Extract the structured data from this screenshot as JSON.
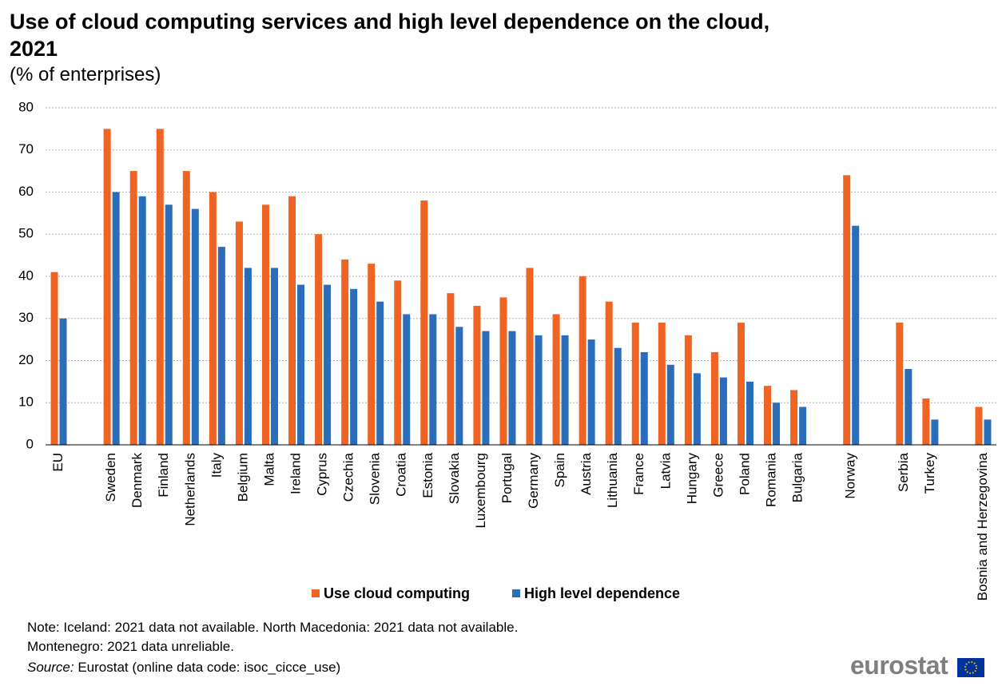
{
  "chart_data": {
    "type": "bar",
    "title": "Use of cloud computing services and high level dependence on the cloud, 2021",
    "subtitle": "(% of enterprises)",
    "categories": [
      "EU",
      null,
      "Sweden",
      "Denmark",
      "Finland",
      "Netherlands",
      "Italy",
      "Belgium",
      "Malta",
      "Ireland",
      "Cyprus",
      "Czechia",
      "Slovenia",
      "Croatia",
      "Estonia",
      "Slovakia",
      "Luxembourg",
      "Portugal",
      "Germany",
      "Spain",
      "Austria",
      "Lithuania",
      "France",
      "Latvia",
      "Hungary",
      "Greece",
      "Poland",
      "Romania",
      "Bulgaria",
      null,
      "Norway",
      null,
      "Serbia",
      "Turkey",
      null,
      "Bosnia and Herzegovina"
    ],
    "series": [
      {
        "name": "Use cloud computing",
        "color": "#f06423",
        "values": [
          41,
          null,
          75,
          65,
          75,
          65,
          60,
          53,
          57,
          59,
          50,
          44,
          43,
          39,
          58,
          36,
          33,
          35,
          42,
          31,
          40,
          34,
          29,
          29,
          26,
          22,
          29,
          14,
          13,
          null,
          64,
          null,
          29,
          11,
          null,
          9
        ]
      },
      {
        "name": "High level dependence",
        "color": "#2a6ebb",
        "values": [
          30,
          null,
          60,
          59,
          57,
          56,
          47,
          42,
          42,
          38,
          38,
          37,
          34,
          31,
          31,
          28,
          27,
          27,
          26,
          26,
          25,
          23,
          22,
          19,
          17,
          16,
          15,
          10,
          9,
          null,
          52,
          null,
          18,
          6,
          null,
          6
        ]
      }
    ],
    "ylim": [
      0,
      80
    ],
    "yticks": [
      0,
      10,
      20,
      30,
      40,
      50,
      60,
      70,
      80
    ],
    "grid": true,
    "legend": "bottom",
    "notes": [
      "Note: Iceland: 2021 data not available. North Macedonia: 2021 data not available.",
      "Montenegro: 2021 data unreliable."
    ],
    "source_label": "Source:",
    "source": "Eurostat (online data code: isoc_cicce_use)"
  },
  "logo": "eurostat"
}
